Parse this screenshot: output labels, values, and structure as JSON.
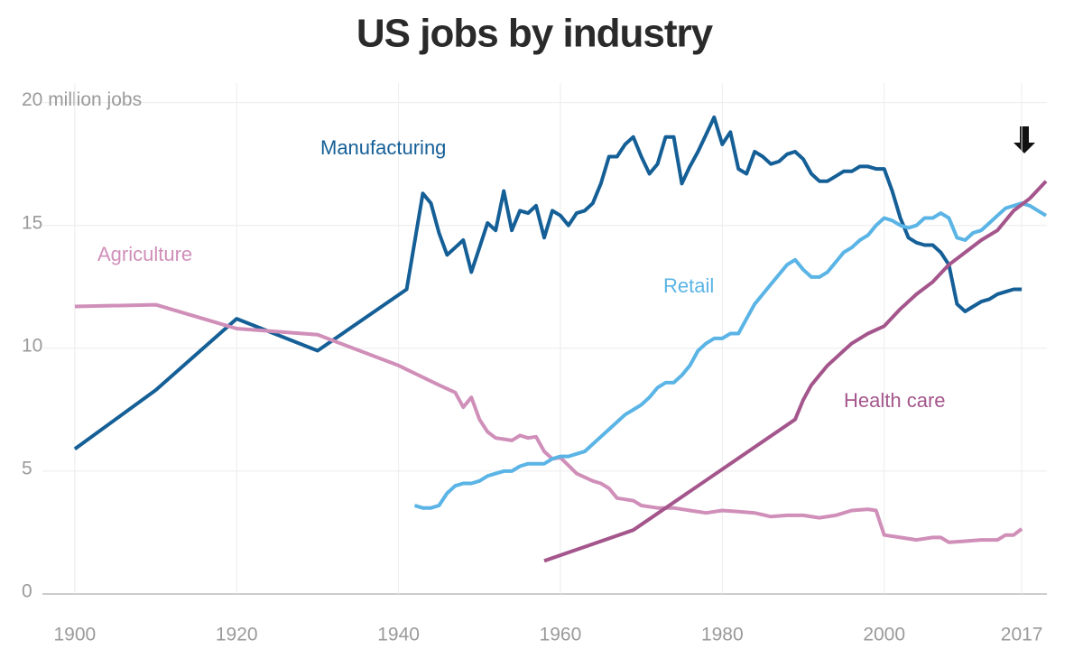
{
  "chart_data": {
    "type": "line",
    "title": "US jobs by industry",
    "xlim": [
      1896,
      2021
    ],
    "xticks": [
      1900,
      1920,
      1940,
      1960,
      1980,
      2000,
      2017
    ],
    "ylim": [
      0,
      20.5
    ],
    "yticks": [
      0,
      5,
      10,
      15,
      {
        "value": 20,
        "label": "20 million jobs"
      }
    ],
    "grid": true,
    "series": [
      {
        "name": "Manufacturing",
        "color": "#155f97",
        "x": [
          1900,
          1910,
          1920,
          1930,
          1941,
          1943,
          1944,
          1945,
          1946,
          1947,
          1948,
          1949,
          1950,
          1951,
          1952,
          1953,
          1954,
          1955,
          1956,
          1957,
          1958,
          1959,
          1960,
          1961,
          1962,
          1963,
          1964,
          1965,
          1966,
          1967,
          1968,
          1969,
          1970,
          1971,
          1972,
          1973,
          1974,
          1975,
          1976,
          1977,
          1978,
          1979,
          1980,
          1981,
          1982,
          1983,
          1984,
          1985,
          1986,
          1987,
          1988,
          1989,
          1990,
          1991,
          1992,
          1993,
          1994,
          1995,
          1996,
          1997,
          1998,
          1999,
          2000,
          2001,
          2002,
          2003,
          2004,
          2005,
          2006,
          2007,
          2008,
          2009,
          2010,
          2011,
          2012,
          2013,
          2014,
          2015,
          2016,
          2017
        ],
        "values": [
          5.9,
          8.3,
          11.2,
          9.9,
          12.4,
          16.3,
          15.9,
          14.7,
          13.8,
          14.1,
          14.4,
          13.1,
          14.1,
          15.1,
          14.8,
          16.4,
          14.8,
          15.6,
          15.5,
          15.8,
          14.5,
          15.6,
          15.4,
          15.0,
          15.5,
          15.6,
          15.9,
          16.7,
          17.8,
          17.8,
          18.3,
          18.6,
          17.8,
          17.1,
          17.5,
          18.6,
          18.6,
          16.7,
          17.4,
          18.0,
          18.7,
          19.4,
          18.3,
          18.8,
          17.3,
          17.1,
          18.0,
          17.8,
          17.5,
          17.6,
          17.9,
          18.0,
          17.7,
          17.1,
          16.8,
          16.8,
          17.0,
          17.2,
          17.2,
          17.4,
          17.4,
          17.3,
          17.3,
          16.4,
          15.3,
          14.5,
          14.3,
          14.2,
          14.2,
          13.9,
          13.4,
          11.8,
          11.5,
          11.7,
          11.9,
          12.0,
          12.2,
          12.3,
          12.4,
          12.4
        ]
      },
      {
        "name": "Agriculture",
        "color": "#d08fb9",
        "x": [
          1900,
          1910,
          1920,
          1930,
          1940,
          1945,
          1947,
          1948,
          1949,
          1950,
          1951,
          1952,
          1953,
          1954,
          1955,
          1956,
          1957,
          1958,
          1959,
          1960,
          1962,
          1964,
          1965,
          1966,
          1967,
          1968,
          1969,
          1970,
          1972,
          1974,
          1976,
          1978,
          1980,
          1982,
          1984,
          1986,
          1988,
          1990,
          1992,
          1994,
          1996,
          1998,
          1999,
          2000,
          2002,
          2004,
          2006,
          2007,
          2008,
          2010,
          2012,
          2014,
          2015,
          2016,
          2017
        ],
        "values": [
          11.7,
          11.77,
          10.8,
          10.55,
          9.3,
          8.5,
          8.2,
          7.6,
          8.0,
          7.1,
          6.6,
          6.35,
          6.3,
          6.25,
          6.45,
          6.35,
          6.4,
          5.8,
          5.5,
          5.55,
          4.9,
          4.6,
          4.5,
          4.3,
          3.9,
          3.85,
          3.8,
          3.6,
          3.5,
          3.5,
          3.4,
          3.3,
          3.4,
          3.35,
          3.3,
          3.15,
          3.2,
          3.2,
          3.1,
          3.2,
          3.4,
          3.45,
          3.4,
          2.4,
          2.3,
          2.2,
          2.3,
          2.3,
          2.1,
          2.15,
          2.2,
          2.2,
          2.4,
          2.4,
          2.65
        ]
      },
      {
        "name": "Retail",
        "color": "#5ab4e5",
        "x": [
          1942,
          1943,
          1944,
          1945,
          1946,
          1947,
          1948,
          1949,
          1950,
          1951,
          1952,
          1953,
          1954,
          1955,
          1956,
          1957,
          1958,
          1959,
          1960,
          1961,
          1962,
          1963,
          1964,
          1965,
          1966,
          1967,
          1968,
          1969,
          1970,
          1971,
          1972,
          1973,
          1974,
          1975,
          1976,
          1977,
          1978,
          1979,
          1980,
          1981,
          1982,
          1983,
          1984,
          1985,
          1986,
          1987,
          1988,
          1989,
          1990,
          1991,
          1992,
          1993,
          1994,
          1995,
          1996,
          1997,
          1998,
          1999,
          2000,
          2001,
          2002,
          2003,
          2004,
          2005,
          2006,
          2007,
          2008,
          2009,
          2010,
          2011,
          2012,
          2013,
          2014,
          2015,
          2016,
          2017,
          2018,
          2019,
          2020
        ],
        "values": [
          3.6,
          3.5,
          3.5,
          3.6,
          4.1,
          4.4,
          4.5,
          4.5,
          4.6,
          4.8,
          4.9,
          5.0,
          5.0,
          5.2,
          5.3,
          5.3,
          5.3,
          5.5,
          5.6,
          5.6,
          5.7,
          5.8,
          6.1,
          6.4,
          6.7,
          7.0,
          7.3,
          7.5,
          7.7,
          8.0,
          8.4,
          8.6,
          8.6,
          8.9,
          9.3,
          9.9,
          10.2,
          10.4,
          10.4,
          10.6,
          10.6,
          11.2,
          11.8,
          12.2,
          12.6,
          13.0,
          13.4,
          13.6,
          13.2,
          12.9,
          12.9,
          13.1,
          13.5,
          13.9,
          14.1,
          14.4,
          14.6,
          15.0,
          15.3,
          15.2,
          15.0,
          14.9,
          15.0,
          15.3,
          15.3,
          15.5,
          15.3,
          14.5,
          14.4,
          14.7,
          14.8,
          15.1,
          15.4,
          15.7,
          15.8,
          15.9,
          15.8,
          15.6,
          15.4
        ]
      },
      {
        "name": "Health care",
        "color": "#a4568c",
        "x": [
          1958,
          1969,
          1989,
          1990,
          1991,
          1992,
          1993,
          1994,
          1995,
          1996,
          1997,
          1998,
          2000,
          2002,
          2004,
          2006,
          2008,
          2010,
          2012,
          2014,
          2016,
          2018,
          2020
        ],
        "values": [
          1.35,
          2.6,
          7.1,
          7.9,
          8.5,
          8.9,
          9.3,
          9.6,
          9.9,
          10.2,
          10.4,
          10.6,
          10.9,
          11.6,
          12.2,
          12.7,
          13.4,
          13.9,
          14.4,
          14.8,
          15.6,
          16.1,
          16.8
        ]
      }
    ]
  }
}
